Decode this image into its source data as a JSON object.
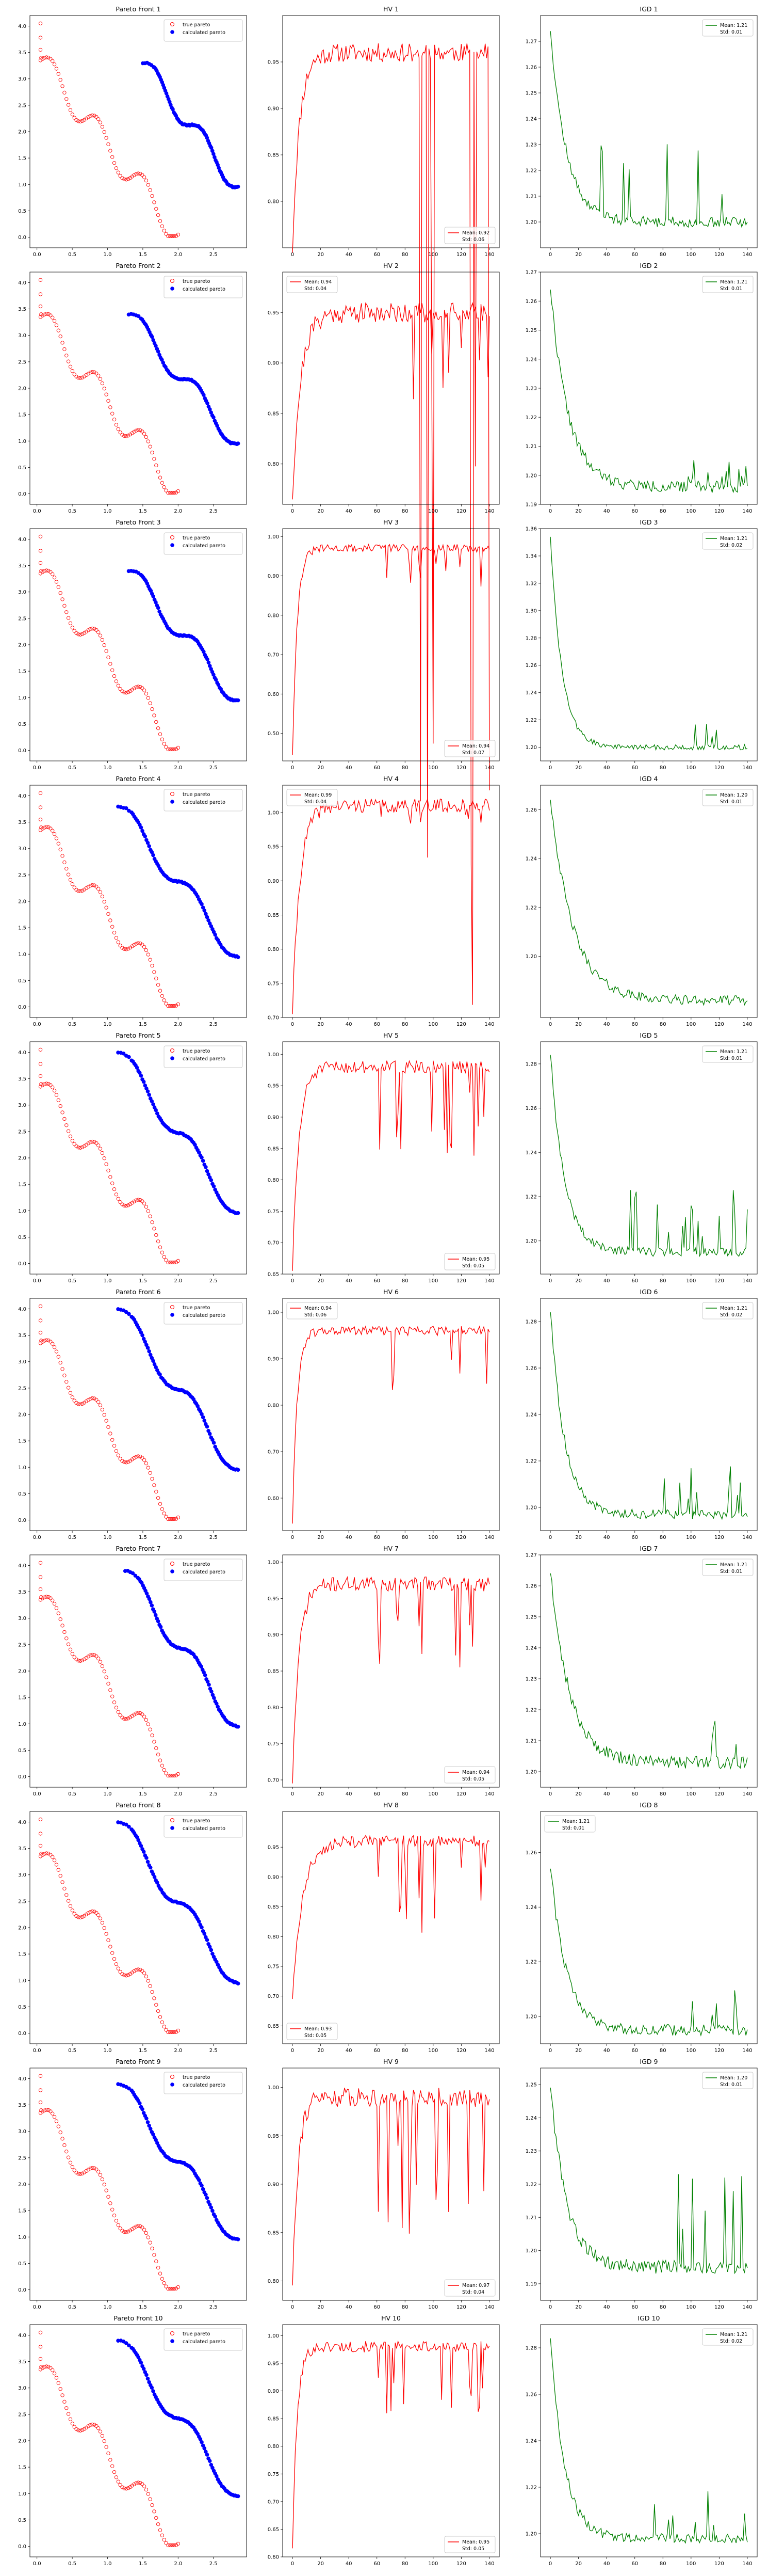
{
  "figure": {
    "legend_labels": {
      "true_pareto": "true pareto",
      "calculated_pareto": "calculated pareto"
    },
    "colors": {
      "true_pareto": "#ff0000",
      "calculated_pareto": "#0000ff",
      "hv_line": "#ff0000",
      "igd_line": "#008000"
    }
  },
  "chart_data": [
    {
      "panel": "Pareto Front 1",
      "type": "scatter",
      "title": "Pareto Front 1",
      "xlim": [
        0,
        3
      ],
      "ylim": [
        0,
        4.2
      ],
      "xticks": [
        0.0,
        0.5,
        1.0,
        1.5,
        2.0,
        2.5,
        3.0
      ],
      "yticks": [
        0.0,
        0.5,
        1.0,
        1.5,
        2.0,
        2.5,
        3.0,
        3.5,
        4.0
      ],
      "calc_x_start": 1.5,
      "calc_y_start": 3.3,
      "legend_loc": "upper right"
    },
    {
      "panel": "HV 1",
      "type": "line",
      "title": "HV 1",
      "xlim": [
        0,
        145
      ],
      "ylim": [
        0.75,
        1.0
      ],
      "xticks": [
        0,
        20,
        40,
        60,
        80,
        100,
        120,
        140
      ],
      "yticks": [
        0.8,
        0.85,
        0.9,
        0.95
      ],
      "legend_loc": "lower right",
      "mean": "Mean: 0.92",
      "std": "Std: 0.06",
      "base": 0.96,
      "start": 0.75,
      "rise": 15,
      "seed": 11,
      "spike": 0.85,
      "pmin": 80
    },
    {
      "panel": "IGD 1",
      "type": "line",
      "title": "IGD 1",
      "xlim": [
        0,
        145
      ],
      "ylim": [
        1.19,
        1.28
      ],
      "xticks": [
        0,
        20,
        40,
        60,
        80,
        100,
        120,
        140
      ],
      "yticks": [
        1.2,
        1.21,
        1.22,
        1.23,
        1.24,
        1.25,
        1.26,
        1.27
      ],
      "legend_loc": "upper right",
      "mean": "Mean: 1.21",
      "std": "Std: 0.01",
      "peak": 1.275,
      "end": 1.2,
      "decay": 25,
      "seed": 12,
      "spike": 0.03,
      "pmin": 35
    },
    {
      "panel": "Pareto Front 2",
      "type": "scatter",
      "title": "Pareto Front 2",
      "xlim": [
        0,
        3
      ],
      "ylim": [
        0,
        4.2
      ],
      "xticks": [
        0.0,
        0.5,
        1.0,
        1.5,
        2.0,
        2.5,
        3.0
      ],
      "yticks": [
        0.0,
        0.5,
        1.0,
        1.5,
        2.0,
        2.5,
        3.0,
        3.5,
        4.0
      ],
      "calc_x_start": 1.3,
      "calc_y_start": 3.4,
      "legend_loc": "upper right"
    },
    {
      "panel": "HV 2",
      "type": "line",
      "title": "HV 2",
      "xlim": [
        0,
        145
      ],
      "ylim": [
        0.76,
        0.99
      ],
      "xticks": [
        0,
        20,
        40,
        60,
        80,
        100,
        120,
        140
      ],
      "yticks": [
        0.8,
        0.85,
        0.9,
        0.95
      ],
      "legend_loc": "upper left",
      "mean": "Mean: 0.94",
      "std": "Std: 0.04",
      "base": 0.95,
      "start": 0.77,
      "rise": 18,
      "seed": 21,
      "spike": 0.07,
      "pmin": 85
    },
    {
      "panel": "IGD 2",
      "type": "line",
      "title": "IGD 2",
      "xlim": [
        0,
        145
      ],
      "ylim": [
        1.19,
        1.27
      ],
      "xticks": [
        0,
        20,
        40,
        60,
        80,
        100,
        120,
        140
      ],
      "yticks": [
        1.19,
        1.2,
        1.21,
        1.22,
        1.23,
        1.24,
        1.25,
        1.26,
        1.27
      ],
      "legend_loc": "upper right",
      "mean": "Mean: 1.21",
      "std": "Std: 0.01",
      "peak": 1.265,
      "end": 1.196,
      "decay": 28,
      "seed": 22,
      "spike": 0.01,
      "pmin": 90
    },
    {
      "panel": "Pareto Front 3",
      "type": "scatter",
      "title": "Pareto Front 3",
      "xlim": [
        0,
        3
      ],
      "ylim": [
        0,
        4.2
      ],
      "xticks": [
        0.0,
        0.5,
        1.0,
        1.5,
        2.0,
        2.5
      ],
      "yticks": [
        0.0,
        0.5,
        1.0,
        1.5,
        2.0,
        2.5,
        3.0,
        3.5,
        4.0
      ],
      "calc_x_start": 1.3,
      "calc_y_start": 3.4,
      "legend_loc": "upper right"
    },
    {
      "panel": "HV 3",
      "type": "line",
      "title": "HV 3",
      "xlim": [
        0,
        145
      ],
      "ylim": [
        0.43,
        1.02
      ],
      "xticks": [
        0,
        20,
        40,
        60,
        80,
        100,
        120,
        140
      ],
      "yticks": [
        0.5,
        0.6,
        0.7,
        0.8,
        0.9,
        1.0
      ],
      "legend_loc": "lower right",
      "mean": "Mean: 0.94",
      "std": "Std: 0.07",
      "base": 0.97,
      "start": 0.45,
      "rise": 10,
      "seed": 31,
      "spike": 0.08,
      "pmin": 50
    },
    {
      "panel": "IGD 3",
      "type": "line",
      "title": "IGD 3",
      "xlim": [
        0,
        145
      ],
      "ylim": [
        1.19,
        1.36
      ],
      "xticks": [
        0,
        20,
        40,
        60,
        80,
        100,
        120,
        140
      ],
      "yticks": [
        1.2,
        1.22,
        1.24,
        1.26,
        1.28,
        1.3,
        1.32,
        1.34,
        1.36
      ],
      "legend_loc": "upper right",
      "mean": "Mean: 1.21",
      "std": "Std: 0.02",
      "peak": 1.355,
      "end": 1.2,
      "decay": 18,
      "seed": 32,
      "spike": 0.02,
      "pmin": 80
    },
    {
      "panel": "Pareto Front 4",
      "type": "scatter",
      "title": "Pareto Front 4",
      "xlim": [
        0,
        3
      ],
      "ylim": [
        0,
        4.2
      ],
      "xticks": [
        0.0,
        0.5,
        1.0,
        1.5,
        2.0,
        2.5
      ],
      "yticks": [
        0.0,
        0.5,
        1.0,
        1.5,
        2.0,
        2.5,
        3.0,
        3.5,
        4.0
      ],
      "calc_x_start": 1.15,
      "calc_y_start": 3.8,
      "legend_loc": "upper right"
    },
    {
      "panel": "HV 4",
      "type": "line",
      "title": "HV 4",
      "xlim": [
        0,
        145
      ],
      "ylim": [
        0.7,
        1.04
      ],
      "xticks": [
        0,
        20,
        40,
        60,
        80,
        100,
        120,
        140
      ],
      "yticks": [
        0.7,
        0.75,
        0.8,
        0.85,
        0.9,
        0.95,
        1.0
      ],
      "legend_loc": "upper left",
      "mean": "Mean: 0.99",
      "std": "Std: 0.04",
      "base": 1.01,
      "start": 0.71,
      "rise": 16,
      "seed": 41,
      "spike": 0.02,
      "pmin": 60
    },
    {
      "panel": "IGD 4",
      "type": "line",
      "title": "IGD 4",
      "xlim": [
        0,
        145
      ],
      "ylim": [
        1.175,
        1.27
      ],
      "xticks": [
        0,
        20,
        40,
        60,
        80,
        100,
        120,
        140
      ],
      "yticks": [
        1.2,
        1.22,
        1.24,
        1.26
      ],
      "legend_loc": "upper right",
      "mean": "Mean: 1.20",
      "std": "Std: 0.01",
      "peak": 1.265,
      "end": 1.182,
      "decay": 35,
      "seed": 42,
      "spike": 0.005,
      "pmin": 200
    },
    {
      "panel": "Pareto Front 5",
      "type": "scatter",
      "title": "Pareto Front 5",
      "xlim": [
        0,
        3
      ],
      "ylim": [
        0,
        4.2
      ],
      "xticks": [
        0.0,
        0.5,
        1.0,
        1.5,
        2.0,
        2.5
      ],
      "yticks": [
        0.0,
        0.5,
        1.0,
        1.5,
        2.0,
        2.5,
        3.0,
        3.5,
        4.0
      ],
      "calc_x_start": 1.15,
      "calc_y_start": 4.0,
      "legend_loc": "upper right"
    },
    {
      "panel": "HV 5",
      "type": "line",
      "title": "HV 5",
      "xlim": [
        0,
        145
      ],
      "ylim": [
        0.65,
        1.02
      ],
      "xticks": [
        0,
        20,
        40,
        60,
        80,
        100,
        120,
        140
      ],
      "yticks": [
        0.65,
        0.7,
        0.75,
        0.8,
        0.85,
        0.9,
        0.95,
        1.0
      ],
      "legend_loc": "lower right",
      "mean": "Mean: 0.95",
      "std": "Std: 0.05",
      "base": 0.98,
      "start": 0.66,
      "rise": 14,
      "seed": 51,
      "spike": 0.12,
      "pmin": 60
    },
    {
      "panel": "IGD 5",
      "type": "line",
      "title": "IGD 5",
      "xlim": [
        0,
        145
      ],
      "ylim": [
        1.185,
        1.29
      ],
      "xticks": [
        0,
        20,
        40,
        60,
        80,
        100,
        120,
        140
      ],
      "yticks": [
        1.2,
        1.22,
        1.24,
        1.26,
        1.28
      ],
      "legend_loc": "upper right",
      "mean": "Mean: 1.21",
      "std": "Std: 0.01",
      "peak": 1.285,
      "end": 1.195,
      "decay": 22,
      "seed": 52,
      "spike": 0.03,
      "pmin": 55
    },
    {
      "panel": "Pareto Front 6",
      "type": "scatter",
      "title": "Pareto Front 6",
      "xlim": [
        0,
        3
      ],
      "ylim": [
        0,
        4.2
      ],
      "xticks": [
        0.0,
        0.5,
        1.0,
        1.5,
        2.0,
        2.5
      ],
      "yticks": [
        0.0,
        0.5,
        1.0,
        1.5,
        2.0,
        2.5,
        3.0,
        3.5,
        4.0
      ],
      "calc_x_start": 1.15,
      "calc_y_start": 4.0,
      "legend_loc": "upper right"
    },
    {
      "panel": "HV 6",
      "type": "line",
      "title": "HV 6",
      "xlim": [
        0,
        145
      ],
      "ylim": [
        0.53,
        1.03
      ],
      "xticks": [
        0,
        20,
        40,
        60,
        80,
        100,
        120,
        140
      ],
      "yticks": [
        0.6,
        0.7,
        0.8,
        0.9,
        1.0
      ],
      "legend_loc": "upper left",
      "mean": "Mean: 0.94",
      "std": "Std: 0.06",
      "base": 0.96,
      "start": 0.55,
      "rise": 10,
      "seed": 61,
      "spike": 0.12,
      "pmin": 60
    },
    {
      "panel": "IGD 6",
      "type": "line",
      "title": "IGD 6",
      "xlim": [
        0,
        145
      ],
      "ylim": [
        1.19,
        1.29
      ],
      "xticks": [
        0,
        20,
        40,
        60,
        80,
        100,
        120,
        140
      ],
      "yticks": [
        1.2,
        1.22,
        1.24,
        1.26,
        1.28
      ],
      "legend_loc": "upper right",
      "mean": "Mean: 1.21",
      "std": "Std: 0.02",
      "peak": 1.285,
      "end": 1.197,
      "decay": 22,
      "seed": 62,
      "spike": 0.02,
      "pmin": 60
    },
    {
      "panel": "Pareto Front 7",
      "type": "scatter",
      "title": "Pareto Front 7",
      "xlim": [
        0,
        3
      ],
      "ylim": [
        0,
        4.2
      ],
      "xticks": [
        0.0,
        0.5,
        1.0,
        1.5,
        2.0,
        2.5
      ],
      "yticks": [
        0.0,
        0.5,
        1.0,
        1.5,
        2.0,
        2.5,
        3.0,
        3.5,
        4.0
      ],
      "calc_x_start": 1.25,
      "calc_y_start": 3.9,
      "legend_loc": "upper right"
    },
    {
      "panel": "HV 7",
      "type": "line",
      "title": "HV 7",
      "xlim": [
        0,
        145
      ],
      "ylim": [
        0.69,
        1.01
      ],
      "xticks": [
        0,
        20,
        40,
        60,
        80,
        100,
        120,
        140
      ],
      "yticks": [
        0.7,
        0.75,
        0.8,
        0.85,
        0.9,
        0.95,
        1.0
      ],
      "legend_loc": "lower right",
      "mean": "Mean: 0.94",
      "std": "Std: 0.05",
      "base": 0.97,
      "start": 0.7,
      "rise": 14,
      "seed": 71,
      "spike": 0.1,
      "pmin": 60
    },
    {
      "panel": "IGD 7",
      "type": "line",
      "title": "IGD 7",
      "xlim": [
        0,
        145
      ],
      "ylim": [
        1.195,
        1.27
      ],
      "xticks": [
        0,
        20,
        40,
        60,
        80,
        100,
        120,
        140
      ],
      "yticks": [
        1.2,
        1.21,
        1.22,
        1.23,
        1.24,
        1.25,
        1.26,
        1.27
      ],
      "legend_loc": "upper right",
      "mean": "Mean: 1.21",
      "std": "Std: 0.01",
      "peak": 1.265,
      "end": 1.203,
      "decay": 30,
      "seed": 72,
      "spike": 0.015,
      "pmin": 90
    },
    {
      "panel": "Pareto Front 8",
      "type": "scatter",
      "title": "Pareto Front 8",
      "xlim": [
        0,
        3
      ],
      "ylim": [
        0,
        4.2
      ],
      "xticks": [
        0.0,
        0.5,
        1.0,
        1.5,
        2.0,
        2.5
      ],
      "yticks": [
        0.0,
        0.5,
        1.0,
        1.5,
        2.0,
        2.5,
        3.0,
        3.5,
        4.0
      ],
      "calc_x_start": 1.15,
      "calc_y_start": 4.0,
      "legend_loc": "upper right"
    },
    {
      "panel": "HV 8",
      "type": "line",
      "title": "HV 8",
      "xlim": [
        0,
        145
      ],
      "ylim": [
        0.62,
        1.01
      ],
      "xticks": [
        0,
        20,
        40,
        60,
        80,
        100,
        120,
        140
      ],
      "yticks": [
        0.65,
        0.7,
        0.75,
        0.8,
        0.85,
        0.9,
        0.95
      ],
      "legend_loc": "lower left",
      "mean": "Mean: 0.93",
      "std": "Std: 0.05",
      "base": 0.96,
      "start": 0.7,
      "rise": 22,
      "seed": 81,
      "spike": 0.12,
      "pmin": 60
    },
    {
      "panel": "IGD 8",
      "type": "line",
      "title": "IGD 8",
      "xlim": [
        1.19,
        1.275
      ],
      "ylim": [
        1.19,
        1.275
      ],
      "xticks": [
        0,
        20,
        40,
        60,
        80,
        100,
        120,
        140
      ],
      "yticks": [
        1.2,
        1.22,
        1.24,
        1.26
      ],
      "legend_loc": "upper left",
      "mean": "Mean: 1.21",
      "std": "Std: 0.01",
      "peak": 1.255,
      "end": 1.195,
      "decay": 25,
      "seed": 82,
      "spike": 0.02,
      "pmin": 95
    },
    {
      "panel": "Pareto Front 9",
      "type": "scatter",
      "title": "Pareto Front 9",
      "xlim": [
        0,
        3
      ],
      "ylim": [
        0,
        4.2
      ],
      "xticks": [
        0.0,
        0.5,
        1.0,
        1.5,
        2.0,
        2.5
      ],
      "yticks": [
        0.0,
        0.5,
        1.0,
        1.5,
        2.0,
        2.5,
        3.0,
        3.5,
        4.0
      ],
      "calc_x_start": 1.15,
      "calc_y_start": 3.9,
      "legend_loc": "upper right"
    },
    {
      "panel": "HV 9",
      "type": "line",
      "title": "HV 9",
      "xlim": [
        0,
        145
      ],
      "ylim": [
        0.78,
        1.02
      ],
      "xticks": [
        0,
        20,
        40,
        60,
        80,
        100,
        120,
        140
      ],
      "yticks": [
        0.8,
        0.85,
        0.9,
        0.95,
        1.0
      ],
      "legend_loc": "lower right",
      "mean": "Mean: 0.97",
      "std": "Std: 0.04",
      "base": 0.99,
      "start": 0.8,
      "rise": 12,
      "seed": 91,
      "spike": 0.14,
      "pmin": 60
    },
    {
      "panel": "IGD 9",
      "type": "line",
      "title": "IGD 9",
      "xlim": [
        0,
        145
      ],
      "ylim": [
        1.185,
        1.255
      ],
      "xticks": [
        0,
        20,
        40,
        60,
        80,
        100,
        120,
        140
      ],
      "yticks": [
        1.19,
        1.2,
        1.21,
        1.22,
        1.23,
        1.24,
        1.25
      ],
      "legend_loc": "upper right",
      "mean": "Mean: 1.20",
      "std": "Std: 0.01",
      "peak": 1.25,
      "end": 1.195,
      "decay": 25,
      "seed": 92,
      "spike": 0.03,
      "pmin": 90
    },
    {
      "panel": "Pareto Front 10",
      "type": "scatter",
      "title": "Pareto Front 10",
      "xlim": [
        0,
        3
      ],
      "ylim": [
        0,
        4.2
      ],
      "xticks": [
        0.0,
        0.5,
        1.0,
        1.5,
        2.0,
        2.5,
        3.0
      ],
      "yticks": [
        0.0,
        0.5,
        1.0,
        1.5,
        2.0,
        2.5,
        3.0,
        3.5,
        4.0
      ],
      "calc_x_start": 1.15,
      "calc_y_start": 3.9,
      "legend_loc": "upper right"
    },
    {
      "panel": "HV 10",
      "type": "line",
      "title": "HV 10",
      "xlim": [
        0,
        145
      ],
      "ylim": [
        0.6,
        1.02
      ],
      "xticks": [
        0,
        20,
        40,
        60,
        80,
        100,
        120,
        140
      ],
      "yticks": [
        0.6,
        0.65,
        0.7,
        0.75,
        0.8,
        0.85,
        0.9,
        0.95,
        1.0
      ],
      "legend_loc": "lower right",
      "mean": "Mean: 0.95",
      "std": "Std: 0.05",
      "base": 0.98,
      "start": 0.62,
      "rise": 10,
      "seed": 101,
      "spike": 0.1,
      "pmin": 60
    },
    {
      "panel": "IGD 10",
      "type": "line",
      "title": "IGD 10",
      "xlim": [
        0,
        145
      ],
      "ylim": [
        1.19,
        1.29
      ],
      "xticks": [
        0,
        20,
        40,
        60,
        80,
        100,
        120,
        140
      ],
      "yticks": [
        1.2,
        1.22,
        1.24,
        1.26,
        1.28
      ],
      "legend_loc": "upper right",
      "mean": "Mean: 1.21",
      "std": "Std: 0.02",
      "peak": 1.285,
      "end": 1.198,
      "decay": 22,
      "seed": 102,
      "spike": 0.02,
      "pmin": 60
    }
  ]
}
